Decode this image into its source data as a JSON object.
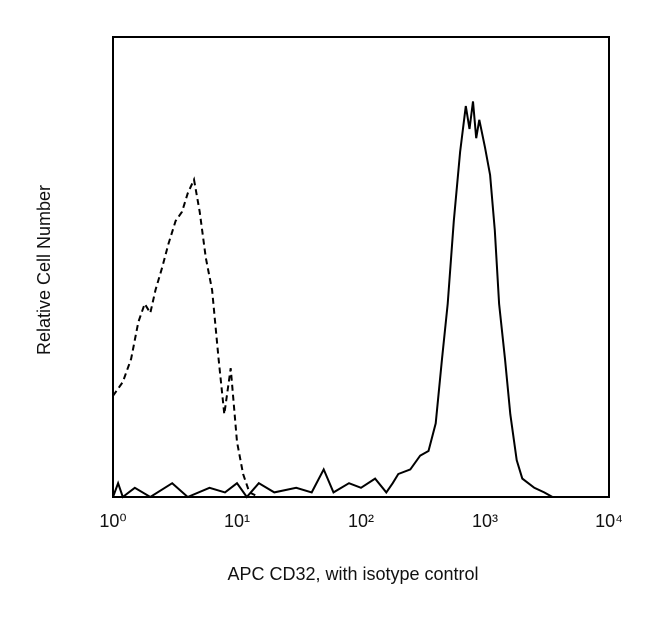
{
  "chart_data": {
    "type": "line",
    "xlabel": "APC CD32, with isotype control",
    "ylabel": "Relative Cell Number",
    "xscale": "log",
    "xlim": [
      1,
      10000
    ],
    "xticks": [
      {
        "value": 1,
        "label": "10⁰"
      },
      {
        "value": 10,
        "label": "10¹"
      },
      {
        "value": 100,
        "label": "10²"
      },
      {
        "value": 1000,
        "label": "10³"
      },
      {
        "value": 10000,
        "label": "10⁴"
      }
    ],
    "ylim": [
      0,
      100
    ],
    "series": [
      {
        "color": "#000000",
        "dashed": true,
        "x": [
          1.0,
          1.2,
          1.4,
          1.6,
          1.8,
          2.0,
          2.2,
          2.5,
          2.8,
          3.2,
          3.6,
          4.0,
          4.5,
          5.0,
          5.6,
          6.3,
          7.1,
          7.9,
          8.9,
          10,
          11.2,
          12.6,
          15,
          100,
          1000,
          4000
        ],
        "values": [
          22,
          25,
          30,
          38,
          42,
          40,
          45,
          50,
          55,
          60,
          62,
          66,
          69,
          62,
          52,
          45,
          30,
          18,
          28,
          12,
          5,
          1,
          0,
          0,
          0,
          0
        ]
      },
      {
        "color": "#000000",
        "dashed": false,
        "x": [
          1,
          1.1,
          1.2,
          1.5,
          2,
          3,
          4,
          6,
          8,
          10,
          12,
          15,
          20,
          30,
          40,
          50,
          60,
          80,
          100,
          130,
          160,
          180,
          200,
          250,
          300,
          350,
          400,
          450,
          500,
          560,
          630,
          700,
          750,
          800,
          850,
          900,
          1000,
          1100,
          1200,
          1300,
          1450,
          1600,
          1800,
          2000,
          2500,
          3000,
          3500
        ],
        "values": [
          0,
          3,
          0,
          2,
          0,
          3,
          0,
          2,
          1,
          3,
          0,
          3,
          1,
          2,
          1,
          6,
          1,
          3,
          2,
          4,
          1,
          3,
          5,
          6,
          9,
          10,
          16,
          30,
          42,
          60,
          75,
          85,
          80,
          86,
          78,
          82,
          76,
          70,
          58,
          42,
          30,
          18,
          8,
          4,
          2,
          1,
          0
        ]
      }
    ]
  }
}
